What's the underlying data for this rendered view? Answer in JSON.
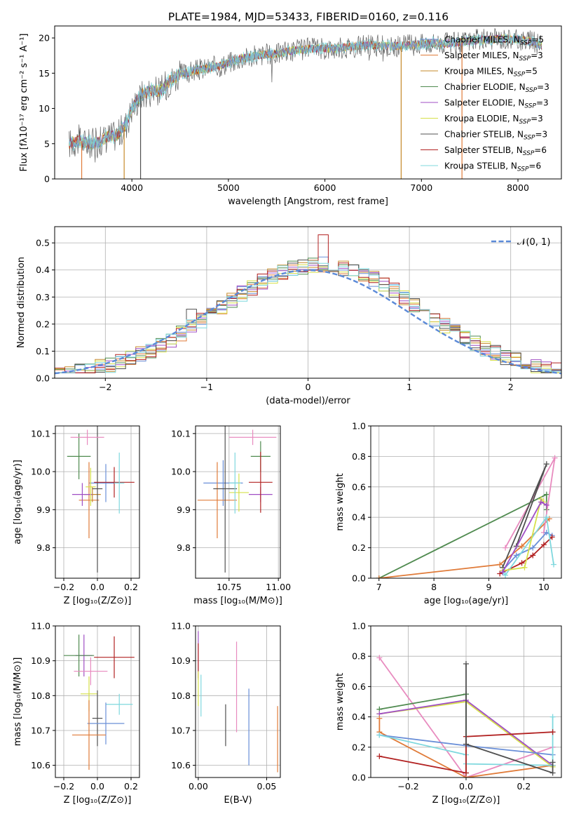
{
  "figure": {
    "title": "PLATE=1984, MJD=53433, FIBERID=0160, z=0.116"
  },
  "colors": {
    "chabrier_miles": "#6a8fd8",
    "salpeter_miles": "#e07b39",
    "kroupa_miles": "#c68a2a",
    "chabrier_elodie": "#4f8a4f",
    "salpeter_elodie": "#a04fc4",
    "kroupa_elodie": "#d6e04a",
    "chabrier_stelib": "#505050",
    "salpeter_stelib": "#b22222",
    "kroupa_stelib": "#7fd8de",
    "pink": "#e88bbf",
    "gaussian": "#5b8ad8"
  },
  "chart_data": [
    {
      "id": "spectrum",
      "type": "line",
      "xlabel": "wavelength [Angstrom, rest frame]",
      "ylabel": "Flux [fλ10⁻¹⁷ erg cm⁻² s⁻¹ A⁻¹]",
      "xlim": [
        3200,
        8450
      ],
      "ylim": [
        0,
        21.7
      ],
      "xticks": [
        4000,
        5000,
        6000,
        7000,
        8000
      ],
      "yticks": [
        0,
        5,
        10,
        15,
        20
      ],
      "legend_position": "top-right",
      "legend": [
        {
          "label": "Chabrier MILES, N_SSP=5",
          "color_key": "chabrier_miles"
        },
        {
          "label": "Salpeter MILES, N_SSP=3",
          "color_key": "salpeter_miles"
        },
        {
          "label": "Kroupa MILES, N_SSP=5",
          "color_key": "kroupa_miles"
        },
        {
          "label": "Chabrier ELODIE, N_SSP=3",
          "color_key": "chabrier_elodie"
        },
        {
          "label": "Salpeter ELODIE, N_SSP=3",
          "color_key": "salpeter_elodie"
        },
        {
          "label": "Kroupa ELODIE, N_SSP=3",
          "color_key": "kroupa_elodie"
        },
        {
          "label": "Chabrier STELIB, N_SSP=3",
          "color_key": "chabrier_stelib"
        },
        {
          "label": "Salpeter STELIB, N_SSP=6",
          "color_key": "salpeter_stelib"
        },
        {
          "label": "Kroupa STELIB, N_SSP=6",
          "color_key": "kroupa_stelib"
        }
      ],
      "continuum": [
        [
          3350,
          5.0
        ],
        [
          3450,
          5.5
        ],
        [
          3550,
          5.0
        ],
        [
          3650,
          5.2
        ],
        [
          3750,
          6.0
        ],
        [
          3850,
          6.2
        ],
        [
          3950,
          8.0
        ],
        [
          4000,
          10.0
        ],
        [
          4100,
          12.0
        ],
        [
          4200,
          12.5
        ],
        [
          4300,
          12.5
        ],
        [
          4400,
          14.0
        ],
        [
          4500,
          14.8
        ],
        [
          4700,
          15.5
        ],
        [
          4900,
          16.0
        ],
        [
          5100,
          17.0
        ],
        [
          5300,
          17.5
        ],
        [
          5500,
          17.8
        ],
        [
          5700,
          18.3
        ],
        [
          5900,
          18.5
        ],
        [
          6100,
          18.5
        ],
        [
          6300,
          18.8
        ],
        [
          6500,
          19.0
        ],
        [
          6700,
          18.8
        ],
        [
          6900,
          19.0
        ],
        [
          7100,
          19.3
        ],
        [
          7300,
          19.2
        ],
        [
          7500,
          19.6
        ],
        [
          7700,
          19.8
        ],
        [
          7900,
          19.9
        ],
        [
          8100,
          19.6
        ],
        [
          8250,
          19.0
        ]
      ],
      "dropouts": [
        {
          "x": 3480,
          "color_key": "salpeter_miles"
        },
        {
          "x": 3920,
          "color_key": "kroupa_miles"
        },
        {
          "x": 4090,
          "color_key": "chabrier_stelib"
        },
        {
          "x": 6790,
          "color_key": "kroupa_miles"
        },
        {
          "x": 7420,
          "color_key": "salpeter_miles"
        }
      ]
    },
    {
      "id": "residual_hist",
      "type": "line",
      "xlabel": "(data-model)/error",
      "ylabel": "Normed distribution",
      "xlim": [
        -2.5,
        2.5
      ],
      "ylim": [
        0,
        0.56
      ],
      "xticks": [
        -2,
        -1,
        0,
        1,
        2
      ],
      "yticks": [
        0.0,
        0.1,
        0.2,
        0.3,
        0.4,
        0.5
      ],
      "legend": [
        {
          "label": "𝒩(0, 1)",
          "color_key": "gaussian"
        }
      ],
      "legend_position": "top-right",
      "bin_width": 0.1,
      "bin_start": -2.5
    },
    {
      "id": "age_vs_Z",
      "type": "scatter",
      "xlabel": "Z [log₁₀(Z/Z⊙)]",
      "ylabel": "age  [log₁₀(age/yr)]",
      "xlim": [
        -0.25,
        0.25
      ],
      "ylim": [
        9.72,
        10.12
      ],
      "xticks": [
        -0.2,
        0.0,
        0.2
      ],
      "yticks": [
        9.8,
        9.9,
        10.0,
        10.1
      ],
      "points": [
        {
          "x": 0.05,
          "y": 9.97,
          "xerr": 0.1,
          "yerr": 0.05,
          "color_key": "chabrier_miles"
        },
        {
          "x": -0.05,
          "y": 9.925,
          "xerr": 0.06,
          "yerr": 0.1,
          "color_key": "salpeter_miles"
        },
        {
          "x": -0.03,
          "y": 9.94,
          "xerr": 0.05,
          "yerr": 0.02,
          "color_key": "kroupa_miles"
        },
        {
          "x": -0.11,
          "y": 10.04,
          "xerr": 0.07,
          "yerr": 0.06,
          "color_key": "chabrier_elodie"
        },
        {
          "x": -0.09,
          "y": 9.94,
          "xerr": 0.06,
          "yerr": 0.03,
          "color_key": "salpeter_elodie"
        },
        {
          "x": -0.04,
          "y": 9.96,
          "xerr": 0.03,
          "yerr": 0.05,
          "color_key": "kroupa_elodie"
        },
        {
          "x": 0.0,
          "y": 9.955,
          "xerr": 0.03,
          "yerr": 0.22,
          "color_key": "chabrier_stelib"
        },
        {
          "x": 0.1,
          "y": 9.972,
          "xerr": 0.12,
          "yerr": 0.04,
          "color_key": "salpeter_stelib"
        },
        {
          "x": 0.13,
          "y": 9.97,
          "xerr": 0.03,
          "yerr": 0.08,
          "color_key": "kroupa_stelib"
        },
        {
          "x": -0.06,
          "y": 10.09,
          "xerr": 0.1,
          "yerr": 0.02,
          "color_key": "pink"
        }
      ]
    },
    {
      "id": "age_vs_mass",
      "type": "scatter",
      "xlabel": "mass [log₁₀(M/M⊙)]",
      "ylabel": "",
      "xlim": [
        10.58,
        11.01
      ],
      "ylim": [
        9.72,
        10.12
      ],
      "xticks": [
        10.75,
        11.0
      ],
      "xticklabels": [
        "10.75",
        "11.00"
      ],
      "yticks": [
        9.8,
        9.9,
        10.0,
        10.1
      ],
      "points": [
        {
          "x": 10.72,
          "y": 9.97,
          "xerr": 0.1,
          "yerr": 0.06,
          "color_key": "chabrier_miles"
        },
        {
          "x": 10.69,
          "y": 9.925,
          "xerr": 0.1,
          "yerr": 0.1,
          "color_key": "salpeter_miles"
        },
        {
          "x": 10.8,
          "y": 9.945,
          "xerr": 0.05,
          "yerr": 0.05,
          "color_key": "kroupa_elodie"
        },
        {
          "x": 10.91,
          "y": 10.04,
          "xerr": 0.05,
          "yerr": 0.04,
          "color_key": "chabrier_elodie"
        },
        {
          "x": 10.91,
          "y": 9.94,
          "xerr": 0.06,
          "yerr": 0.02,
          "color_key": "salpeter_elodie"
        },
        {
          "x": 10.73,
          "y": 9.955,
          "xerr": 0.06,
          "yerr": 0.22,
          "color_key": "chabrier_stelib"
        },
        {
          "x": 10.91,
          "y": 9.972,
          "xerr": 0.06,
          "yerr": 0.08,
          "color_key": "salpeter_stelib"
        },
        {
          "x": 10.78,
          "y": 9.97,
          "xerr": 0.03,
          "yerr": 0.08,
          "color_key": "kroupa_stelib"
        },
        {
          "x": 10.87,
          "y": 10.09,
          "xerr": 0.12,
          "yerr": 0.02,
          "color_key": "pink"
        }
      ]
    },
    {
      "id": "massweight_vs_age",
      "type": "line",
      "xlabel": "age  [log₁₀(age/yr)]",
      "ylabel": "mass weight",
      "xlim": [
        6.85,
        10.32
      ],
      "ylim": [
        0,
        1.0
      ],
      "xticks": [
        7,
        8,
        9,
        10
      ],
      "yticks": [
        0.0,
        0.2,
        0.4,
        0.6,
        0.8,
        1.0
      ],
      "series": [
        {
          "color_key": "chabrier_elodie",
          "x": [
            7.0,
            10.05,
            10.05
          ],
          "y": [
            0.0,
            0.55,
            0.45
          ]
        },
        {
          "color_key": "salpeter_miles",
          "x": [
            7.0,
            9.2,
            9.6,
            10.1
          ],
          "y": [
            0.0,
            0.09,
            0.21,
            0.39
          ]
        },
        {
          "color_key": "pink",
          "x": [
            9.3,
            10.2,
            10.0
          ],
          "y": [
            0.2,
            0.79,
            0.3
          ]
        },
        {
          "color_key": "chabrier_stelib",
          "x": [
            9.25,
            10.05,
            9.5
          ],
          "y": [
            0.07,
            0.75,
            0.21
          ]
        },
        {
          "color_key": "chabrier_miles",
          "x": [
            9.25,
            9.5,
            9.8,
            10.05,
            10.15
          ],
          "y": [
            0.05,
            0.15,
            0.2,
            0.3,
            0.28
          ]
        },
        {
          "color_key": "salpeter_stelib",
          "x": [
            9.2,
            9.6,
            9.8,
            10.0,
            10.15
          ],
          "y": [
            0.03,
            0.1,
            0.15,
            0.22,
            0.27
          ]
        },
        {
          "color_key": "kroupa_stelib",
          "x": [
            9.25,
            9.3,
            10.05,
            10.18
          ],
          "y": [
            0.04,
            0.02,
            0.4,
            0.09
          ]
        },
        {
          "color_key": "kroupa_elodie",
          "x": [
            9.25,
            9.65,
            9.95,
            10.0
          ],
          "y": [
            0.05,
            0.07,
            0.52,
            0.5
          ]
        },
        {
          "color_key": "salpeter_elodie",
          "x": [
            9.25,
            9.95,
            10.05
          ],
          "y": [
            0.04,
            0.5,
            0.48
          ]
        }
      ]
    },
    {
      "id": "mass_vs_Z",
      "type": "scatter",
      "xlabel": "Z [log₁₀(Z/Z⊙)]",
      "ylabel": "mass [log₁₀(M/M⊙)]",
      "xlim": [
        -0.25,
        0.25
      ],
      "ylim": [
        10.565,
        11.0
      ],
      "xticks": [
        -0.2,
        0.0,
        0.2
      ],
      "yticks": [
        10.6,
        10.7,
        10.8,
        10.9,
        11.0
      ],
      "points": [
        {
          "x": -0.08,
          "y": 10.915,
          "xerr": 0.05,
          "yerr": 0.06,
          "color_key": "salpeter_elodie"
        },
        {
          "x": -0.11,
          "y": 10.915,
          "xerr": 0.09,
          "yerr": 0.06,
          "color_key": "chabrier_elodie"
        },
        {
          "x": 0.1,
          "y": 10.91,
          "xerr": 0.12,
          "yerr": 0.06,
          "color_key": "salpeter_stelib"
        },
        {
          "x": -0.04,
          "y": 10.87,
          "xerr": 0.1,
          "yerr": 0.04,
          "color_key": "pink"
        },
        {
          "x": -0.05,
          "y": 10.805,
          "xerr": 0.05,
          "yerr": 0.05,
          "color_key": "kroupa_elodie"
        },
        {
          "x": 0.13,
          "y": 10.775,
          "xerr": 0.08,
          "yerr": 0.03,
          "color_key": "kroupa_stelib"
        },
        {
          "x": 0.0,
          "y": 10.735,
          "xerr": 0.03,
          "yerr": 0.08,
          "color_key": "chabrier_stelib"
        },
        {
          "x": 0.05,
          "y": 10.72,
          "xerr": 0.11,
          "yerr": 0.06,
          "color_key": "chabrier_miles"
        },
        {
          "x": -0.05,
          "y": 10.687,
          "xerr": 0.1,
          "yerr": 0.1,
          "color_key": "salpeter_miles"
        }
      ]
    },
    {
      "id": "mass_vs_ebv",
      "type": "scatter",
      "xlabel": "E(B-V)",
      "ylabel": "",
      "xlim": [
        -0.002,
        0.06
      ],
      "ylim": [
        10.565,
        11.0
      ],
      "xticks": [
        0.0,
        0.05
      ],
      "xticklabels": [
        "0.00",
        "0.05"
      ],
      "yticks": [
        10.6,
        10.7,
        10.8,
        10.9,
        11.0
      ],
      "points": [
        {
          "x": 0.0,
          "y": 10.915,
          "xerr": 0,
          "yerr": 0.07,
          "color_key": "salpeter_elodie"
        },
        {
          "x": 0.0,
          "y": 10.9,
          "xerr": 0,
          "yerr": 0.05,
          "color_key": "salpeter_stelib"
        },
        {
          "x": 0.0,
          "y": 10.82,
          "xerr": 0,
          "yerr": 0.05,
          "color_key": "kroupa_elodie"
        },
        {
          "x": 0.002,
          "y": 10.8,
          "xerr": 0,
          "yerr": 0.06,
          "color_key": "kroupa_stelib"
        },
        {
          "x": 0.02,
          "y": 10.715,
          "xerr": 0,
          "yerr": 0.06,
          "color_key": "chabrier_stelib"
        },
        {
          "x": 0.028,
          "y": 10.825,
          "xerr": 0,
          "yerr": 0.13,
          "color_key": "pink"
        },
        {
          "x": 0.037,
          "y": 10.71,
          "xerr": 0,
          "yerr": 0.11,
          "color_key": "chabrier_miles"
        },
        {
          "x": 0.058,
          "y": 10.675,
          "xerr": 0,
          "yerr": 0.095,
          "color_key": "salpeter_miles"
        }
      ]
    },
    {
      "id": "massweight_vs_Z",
      "type": "line",
      "xlabel": "Z [log₁₀(Z/Z⊙)]",
      "ylabel": "mass weight",
      "xlim": [
        -0.33,
        0.33
      ],
      "ylim": [
        0,
        1.0
      ],
      "xticks": [
        -0.2,
        0.0,
        0.2
      ],
      "yticks": [
        0.0,
        0.2,
        0.4,
        0.6,
        0.8,
        1.0
      ],
      "series": [
        {
          "color_key": "pink",
          "x": [
            -0.3,
            0.0,
            0.3
          ],
          "y": [
            0.79,
            0.0,
            0.2
          ]
        },
        {
          "color_key": "chabrier_elodie",
          "x": [
            -0.3,
            0.0,
            0.0
          ],
          "y": [
            0.45,
            0.55,
            0.03
          ]
        },
        {
          "color_key": "kroupa_elodie",
          "x": [
            -0.3,
            0.0,
            0.3
          ],
          "y": [
            0.42,
            0.5,
            0.07
          ]
        },
        {
          "color_key": "salpeter_elodie",
          "x": [
            -0.3,
            0.0,
            0.3
          ],
          "y": [
            0.42,
            0.51,
            0.08
          ]
        },
        {
          "color_key": "salpeter_miles",
          "x": [
            -0.3,
            -0.3,
            0.0,
            0.3
          ],
          "y": [
            0.39,
            0.3,
            0.0,
            0.08
          ]
        },
        {
          "color_key": "chabrier_miles",
          "x": [
            -0.3,
            0.0,
            0.3
          ],
          "y": [
            0.28,
            0.21,
            0.15
          ]
        },
        {
          "color_key": "kroupa_stelib",
          "x": [
            -0.3,
            0.0,
            0.0,
            0.3,
            0.3
          ],
          "y": [
            0.28,
            0.15,
            0.09,
            0.08,
            0.4
          ]
        },
        {
          "color_key": "salpeter_stelib",
          "x": [
            -0.3,
            0.0,
            0.0,
            0.3
          ],
          "y": [
            0.14,
            0.03,
            0.27,
            0.3
          ]
        },
        {
          "color_key": "chabrier_stelib",
          "x": [
            0.0,
            0.0,
            0.3,
            0.3
          ],
          "y": [
            0.75,
            0.22,
            0.03,
            0.1
          ]
        }
      ]
    }
  ]
}
